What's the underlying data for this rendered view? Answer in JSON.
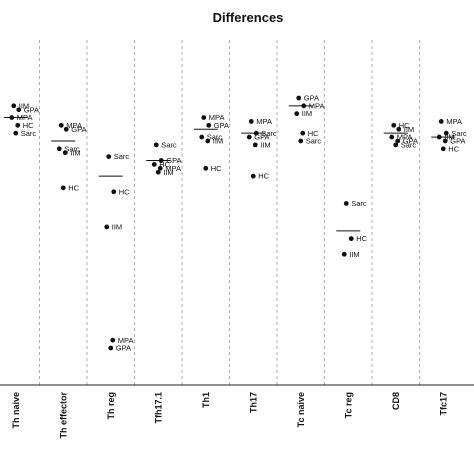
{
  "chart_data": {
    "type": "scatter",
    "title": "Differences",
    "xlabel": "",
    "ylabel": "",
    "grid": "dashed vertical separators",
    "categories": [
      "Th naive",
      "Th effector",
      "Th reg",
      "Tfh17.1",
      "Th1",
      "Th17",
      "Tc naive",
      "Tc reg",
      "CD8",
      "Tfc17"
    ],
    "groups": [
      "IIM",
      "GPA",
      "MPA",
      "HC",
      "Sarc"
    ],
    "points": [
      {
        "category": "Th naive",
        "group": "IIM",
        "value": 0.77
      },
      {
        "category": "Th naive",
        "group": "GPA",
        "value": 0.76
      },
      {
        "category": "Th naive",
        "group": "MPA",
        "value": 0.74
      },
      {
        "category": "Th naive",
        "group": "HC",
        "value": 0.72
      },
      {
        "category": "Th naive",
        "group": "Sarc",
        "value": 0.7
      },
      {
        "category": "Th effector",
        "group": "MPA",
        "value": 0.72
      },
      {
        "category": "Th effector",
        "group": "GPA",
        "value": 0.71
      },
      {
        "category": "Th effector",
        "group": "Sarc",
        "value": 0.66
      },
      {
        "category": "Th effector",
        "group": "IIM",
        "value": 0.65
      },
      {
        "category": "Th effector",
        "group": "HC",
        "value": 0.56
      },
      {
        "category": "Th reg",
        "group": "Sarc",
        "value": 0.64
      },
      {
        "category": "Th reg",
        "group": "HC",
        "value": 0.55
      },
      {
        "category": "Th reg",
        "group": "IIM",
        "value": 0.46
      },
      {
        "category": "Th reg",
        "group": "MPA",
        "value": 0.17
      },
      {
        "category": "Th reg",
        "group": "GPA",
        "value": 0.15
      },
      {
        "category": "Tfh17.1",
        "group": "Sarc",
        "value": 0.67
      },
      {
        "category": "Tfh17.1",
        "group": "GPA",
        "value": 0.63
      },
      {
        "category": "Tfh17.1",
        "group": "HC",
        "value": 0.62
      },
      {
        "category": "Tfh17.1",
        "group": "MPA",
        "value": 0.61
      },
      {
        "category": "Tfh17.1",
        "group": "IIM",
        "value": 0.6
      },
      {
        "category": "Th1",
        "group": "MPA",
        "value": 0.74
      },
      {
        "category": "Th1",
        "group": "GPA",
        "value": 0.72
      },
      {
        "category": "Th1",
        "group": "Sarc",
        "value": 0.69
      },
      {
        "category": "Th1",
        "group": "IIM",
        "value": 0.68
      },
      {
        "category": "Th1",
        "group": "HC",
        "value": 0.61
      },
      {
        "category": "Th17",
        "group": "MPA",
        "value": 0.73
      },
      {
        "category": "Th17",
        "group": "Sarc",
        "value": 0.7
      },
      {
        "category": "Th17",
        "group": "GPA",
        "value": 0.69
      },
      {
        "category": "Th17",
        "group": "IIM",
        "value": 0.67
      },
      {
        "category": "Th17",
        "group": "HC",
        "value": 0.59
      },
      {
        "category": "Tc naive",
        "group": "GPA",
        "value": 0.79
      },
      {
        "category": "Tc naive",
        "group": "MPA",
        "value": 0.77
      },
      {
        "category": "Tc naive",
        "group": "IIM",
        "value": 0.75
      },
      {
        "category": "Tc naive",
        "group": "HC",
        "value": 0.7
      },
      {
        "category": "Tc naive",
        "group": "Sarc",
        "value": 0.68
      },
      {
        "category": "Tc reg",
        "group": "Sarc",
        "value": 0.52
      },
      {
        "category": "Tc reg",
        "group": "HC",
        "value": 0.43
      },
      {
        "category": "Tc reg",
        "group": "IIM",
        "value": 0.39
      },
      {
        "category": "CD8",
        "group": "HC",
        "value": 0.72
      },
      {
        "category": "CD8",
        "group": "IIM",
        "value": 0.71
      },
      {
        "category": "CD8",
        "group": "MPA",
        "value": 0.69
      },
      {
        "category": "CD8",
        "group": "GPA",
        "value": 0.68
      },
      {
        "category": "CD8",
        "group": "Sarc",
        "value": 0.67
      },
      {
        "category": "Tfc17",
        "group": "MPA",
        "value": 0.73
      },
      {
        "category": "Tfc17",
        "group": "Sarc",
        "value": 0.7
      },
      {
        "category": "Tfc17",
        "group": "IIM",
        "value": 0.69
      },
      {
        "category": "Tfc17",
        "group": "GPA",
        "value": 0.68
      },
      {
        "category": "Tfc17",
        "group": "HC",
        "value": 0.66
      }
    ],
    "medians": [
      {
        "category": "Th naive",
        "value": 0.74
      },
      {
        "category": "Th effector",
        "value": 0.68
      },
      {
        "category": "Th reg",
        "value": 0.59
      },
      {
        "category": "Tfh17.1",
        "value": 0.63
      },
      {
        "category": "Th1",
        "value": 0.71
      },
      {
        "category": "Th17",
        "value": 0.7
      },
      {
        "category": "Tc naive",
        "value": 0.77
      },
      {
        "category": "Tc reg",
        "value": 0.45
      },
      {
        "category": "CD8",
        "value": 0.7
      },
      {
        "category": "Tfc17",
        "value": 0.69
      }
    ],
    "ylim": [
      0,
      1
    ]
  }
}
